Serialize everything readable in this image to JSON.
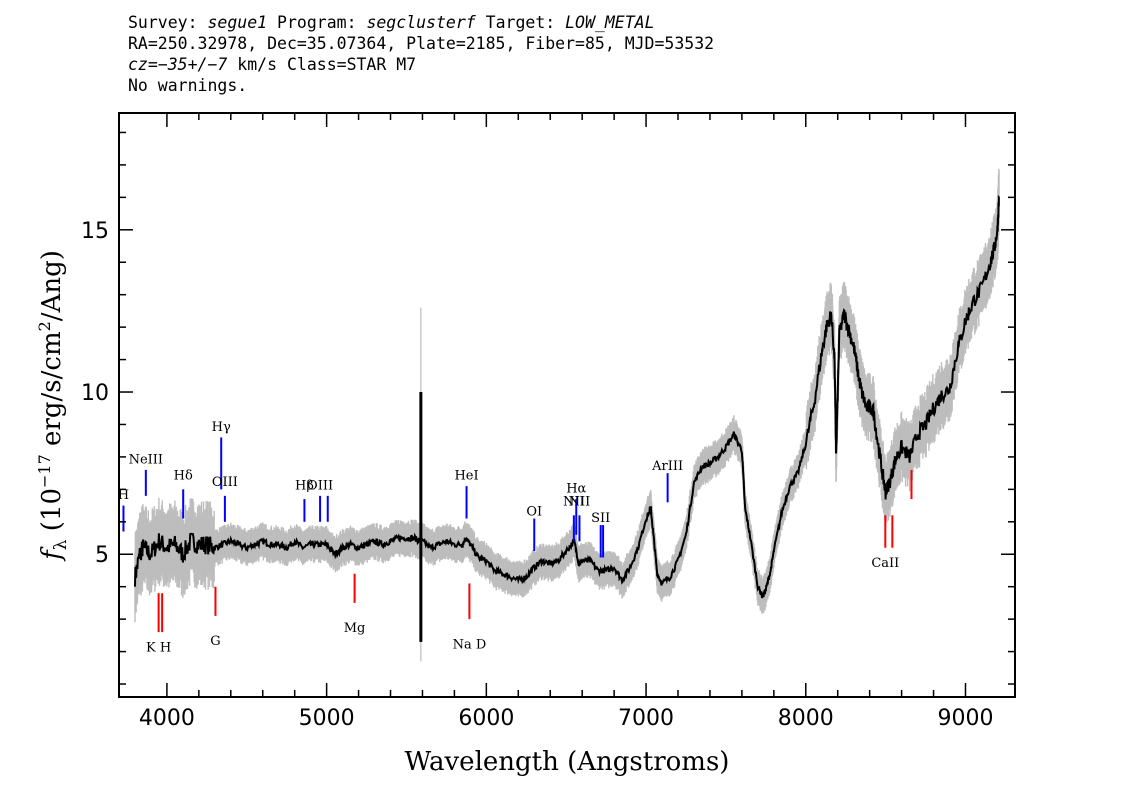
{
  "header": {
    "line1": {
      "survey_label": "Survey: ",
      "survey": "segue1",
      "program_label": " Program: ",
      "program": "segclusterf",
      "target_label": " Target: ",
      "target": "LOW_METAL"
    },
    "line2": "RA=250.32978, Dec=35.07364, Plate=2185, Fiber=85, MJD=53532",
    "line3": {
      "cz_label": "cz=",
      "cz_value": "−35+/−7",
      "rest": " km/s Class=STAR M7"
    },
    "line4": "No warnings."
  },
  "chart_data": {
    "type": "line",
    "title": "",
    "xlabel": "Wavelength (Angstroms)",
    "ylabel_parts": {
      "f": "f",
      "sub": "λ",
      "open": " (10",
      "exp": "−17",
      "mid": " erg/s/cm",
      "exp2": "2",
      "close": "/Ang)"
    },
    "xlim": [
      3700,
      9310
    ],
    "ylim": [
      0.6,
      18.6
    ],
    "x_ticks": [
      4000,
      5000,
      6000,
      7000,
      8000,
      9000
    ],
    "y_ticks": [
      5,
      10,
      15
    ],
    "grid": false,
    "colors": {
      "flux": "#000000",
      "error": "#bdbdbd",
      "emission": "#0000ff",
      "absorption": "#ff0000"
    },
    "series": [
      {
        "x": [
          3800,
          3830,
          3850,
          3900,
          3950,
          4000,
          4050,
          4100,
          4150,
          4200,
          4250,
          4300,
          4350,
          4400,
          4450,
          4500,
          4550,
          4600,
          4650,
          4700,
          4750,
          4800,
          4850,
          4900,
          4950,
          5000,
          5050,
          5100,
          5150,
          5200,
          5250,
          5300,
          5350,
          5400,
          5450,
          5500,
          5550,
          5580,
          5600,
          5650,
          5700,
          5750,
          5800,
          5850,
          5870,
          5900,
          5950,
          6000,
          6050,
          6100,
          6150,
          6200,
          6250,
          6300,
          6350,
          6400,
          6450,
          6500,
          6550,
          6580,
          6600,
          6650,
          6700,
          6750,
          6800,
          6850,
          6900,
          6950,
          7000,
          7030,
          7050,
          7070,
          7100,
          7150,
          7200,
          7250,
          7300,
          7350,
          7400,
          7450,
          7500,
          7550,
          7600,
          7620,
          7650,
          7700,
          7730,
          7750,
          7780,
          7800,
          7850,
          7900,
          7950,
          8000,
          8050,
          8100,
          8130,
          8160,
          8180,
          8190,
          8210,
          8240,
          8270,
          8300,
          8330,
          8350,
          8380,
          8420,
          8450,
          8480,
          8500,
          8530,
          8560,
          8600,
          8650,
          8700,
          8750,
          8800,
          8850,
          8900,
          8950,
          9000,
          9050,
          9100,
          9150,
          9180,
          9200,
          9210
        ],
        "y": [
          4.3,
          5.0,
          5.2,
          5.0,
          5.4,
          5.2,
          5.3,
          5.0,
          5.4,
          5.3,
          5.3,
          5.2,
          5.3,
          5.4,
          5.3,
          5.2,
          5.3,
          5.4,
          5.3,
          5.3,
          5.2,
          5.4,
          5.2,
          5.3,
          5.3,
          5.3,
          5.0,
          5.2,
          5.3,
          5.2,
          5.3,
          5.4,
          5.3,
          5.4,
          5.5,
          5.5,
          5.5,
          5.4,
          5.4,
          5.2,
          5.3,
          5.4,
          5.3,
          5.3,
          5.5,
          5.3,
          4.9,
          4.8,
          4.5,
          4.4,
          4.3,
          4.2,
          4.3,
          4.6,
          4.8,
          4.7,
          4.8,
          5.1,
          5.4,
          4.7,
          4.8,
          4.8,
          4.5,
          4.5,
          4.6,
          4.2,
          4.6,
          5.2,
          6.1,
          6.4,
          5.4,
          4.4,
          4.1,
          4.3,
          4.8,
          5.6,
          7.2,
          7.7,
          7.8,
          8.0,
          8.3,
          8.7,
          8.2,
          6.4,
          5.6,
          4.0,
          3.7,
          3.9,
          4.5,
          5.1,
          6.3,
          7.1,
          7.5,
          8.4,
          9.6,
          11.2,
          12.0,
          12.4,
          11.0,
          8.0,
          11.8,
          12.4,
          11.9,
          11.4,
          10.5,
          10.0,
          9.5,
          9.5,
          8.5,
          7.5,
          6.9,
          7.3,
          7.9,
          8.3,
          8.0,
          8.7,
          9.0,
          9.5,
          9.9,
          10.1,
          11.3,
          12.2,
          12.8,
          13.2,
          13.9,
          14.4,
          15.0,
          16.0
        ]
      }
    ],
    "spike": {
      "x": 5590,
      "y_min": 2.3,
      "y_max": 10.0
    },
    "emission_lines": [
      {
        "label": "H",
        "x": 3728,
        "y1": 5.7,
        "y2": 6.5,
        "ly": 6.7
      },
      {
        "label": "NeIII",
        "x": 3868,
        "y1": 6.8,
        "y2": 7.6,
        "ly": 7.8
      },
      {
        "label": "Hδ",
        "x": 4102,
        "y1": 6.1,
        "y2": 7.0,
        "ly": 7.3
      },
      {
        "label": "Hγ",
        "x": 4340,
        "y1": 7.0,
        "y2": 8.6,
        "ly": 8.8
      },
      {
        "label": "OIII",
        "x": 4363,
        "y1": 6.0,
        "y2": 6.8,
        "ly": 7.1
      },
      {
        "label": "Hβ",
        "x": 4861,
        "y1": 6.0,
        "y2": 6.7,
        "ly": 7.0
      },
      {
        "label": "OIII",
        "x": 4959,
        "y1": 6.0,
        "y2": 6.8,
        "ly": 7.0
      },
      {
        "label": "",
        "x": 5007,
        "y1": 6.0,
        "y2": 6.8,
        "ly": 0
      },
      {
        "label": "HeI",
        "x": 5876,
        "y1": 6.1,
        "y2": 7.1,
        "ly": 7.3
      },
      {
        "label": "OI",
        "x": 6300,
        "y1": 5.1,
        "y2": 6.1,
        "ly": 6.2
      },
      {
        "label": "NII",
        "x": 6548,
        "y1": 5.4,
        "y2": 6.2,
        "ly": 6.5
      },
      {
        "label": "Hα",
        "x": 6563,
        "y1": 5.6,
        "y2": 6.7,
        "ly": 6.9
      },
      {
        "label": "NII",
        "x": 6583,
        "y1": 5.4,
        "y2": 6.2,
        "ly": 6.5
      },
      {
        "label": "SII",
        "x": 6716,
        "y1": 4.9,
        "y2": 5.9,
        "ly": 6.0
      },
      {
        "label": "",
        "x": 6731,
        "y1": 4.9,
        "y2": 5.9,
        "ly": 0
      },
      {
        "label": "ArIII",
        "x": 7135,
        "y1": 6.6,
        "y2": 7.5,
        "ly": 7.6
      }
    ],
    "absorption_lines": [
      {
        "label": "K H",
        "x": 3948,
        "y1": 2.6,
        "y2": 3.8,
        "ly": 2.0
      },
      {
        "label": "",
        "x": 3970,
        "y1": 2.6,
        "y2": 3.8,
        "ly": 0
      },
      {
        "label": "G",
        "x": 4304,
        "y1": 3.1,
        "y2": 4.0,
        "ly": 2.2
      },
      {
        "label": "Mg",
        "x": 5175,
        "y1": 3.5,
        "y2": 4.4,
        "ly": 2.6
      },
      {
        "label": "Na D",
        "x": 5894,
        "y1": 3.0,
        "y2": 4.1,
        "ly": 2.1
      },
      {
        "label": "CaII",
        "x": 8498,
        "y1": 5.2,
        "y2": 6.2,
        "ly": 4.6
      },
      {
        "label": "",
        "x": 8542,
        "y1": 5.2,
        "y2": 6.2,
        "ly": 0
      },
      {
        "label": "",
        "x": 8662,
        "y1": 6.7,
        "y2": 7.6,
        "ly": 0
      }
    ]
  }
}
